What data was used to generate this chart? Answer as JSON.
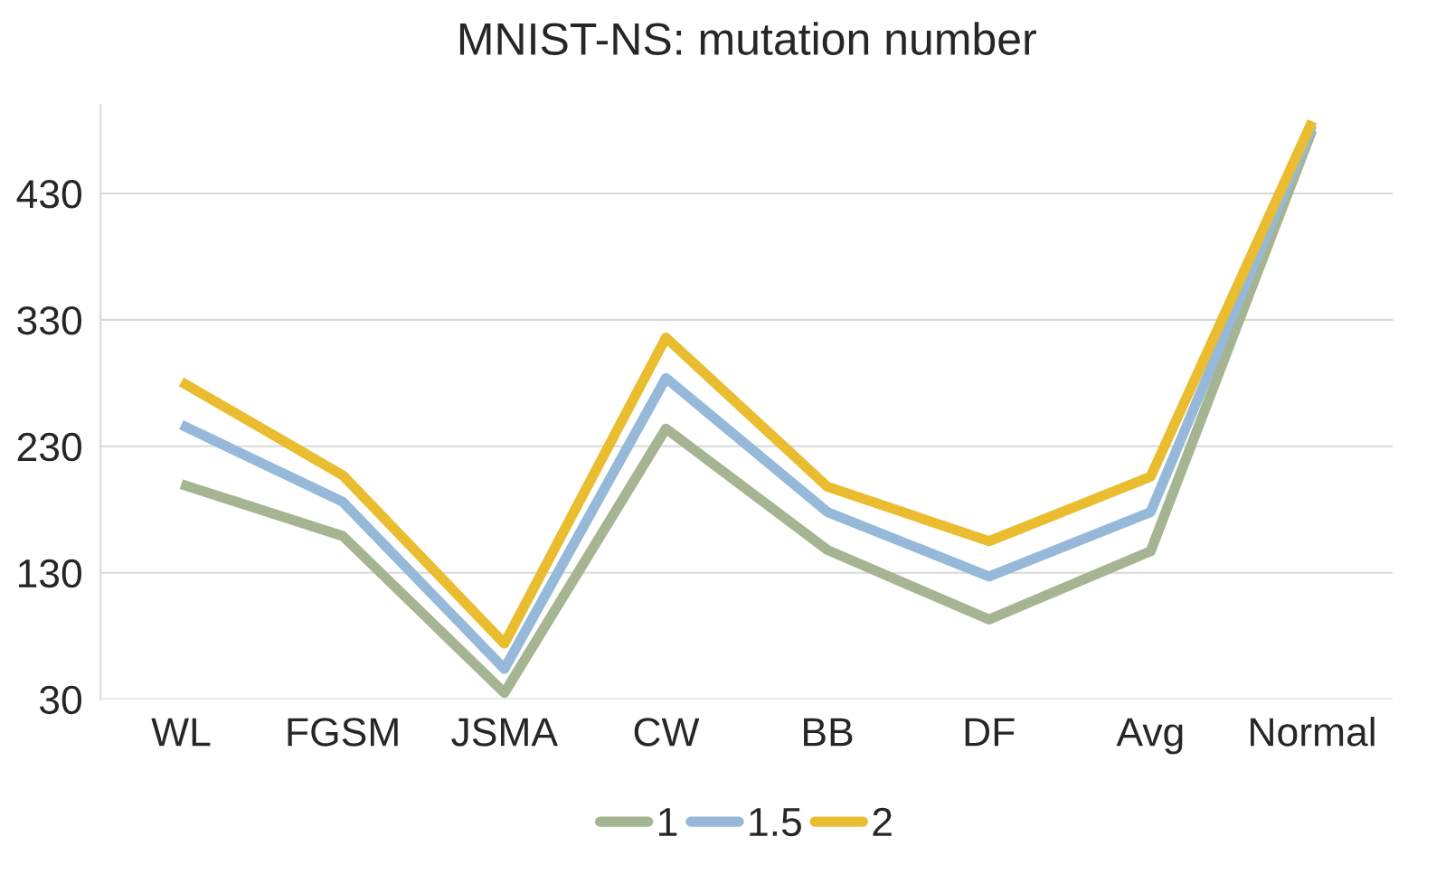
{
  "chart_data": {
    "type": "line",
    "title": "MNIST-NS: mutation number",
    "categories": [
      "WL",
      "FGSM",
      "JSMA",
      "CW",
      "BB",
      "DF",
      "Avg",
      "Normal"
    ],
    "series": [
      {
        "name": "1",
        "color": "#a5b592",
        "values": [
          200,
          159,
          35,
          244,
          148,
          93,
          147,
          480
        ]
      },
      {
        "name": "1.5",
        "color": "#97b9d9",
        "values": [
          247,
          186,
          54,
          284,
          178,
          127,
          178,
          484
        ]
      },
      {
        "name": "2",
        "color": "#e9bd2f",
        "values": [
          281,
          207,
          74,
          316,
          198,
          155,
          206,
          487
        ]
      }
    ],
    "ylim": [
      30,
      500
    ],
    "yticks": [
      30,
      130,
      230,
      330,
      430
    ],
    "grid": "y",
    "legend": "bottom",
    "marker": "none",
    "line_style": "solid"
  }
}
